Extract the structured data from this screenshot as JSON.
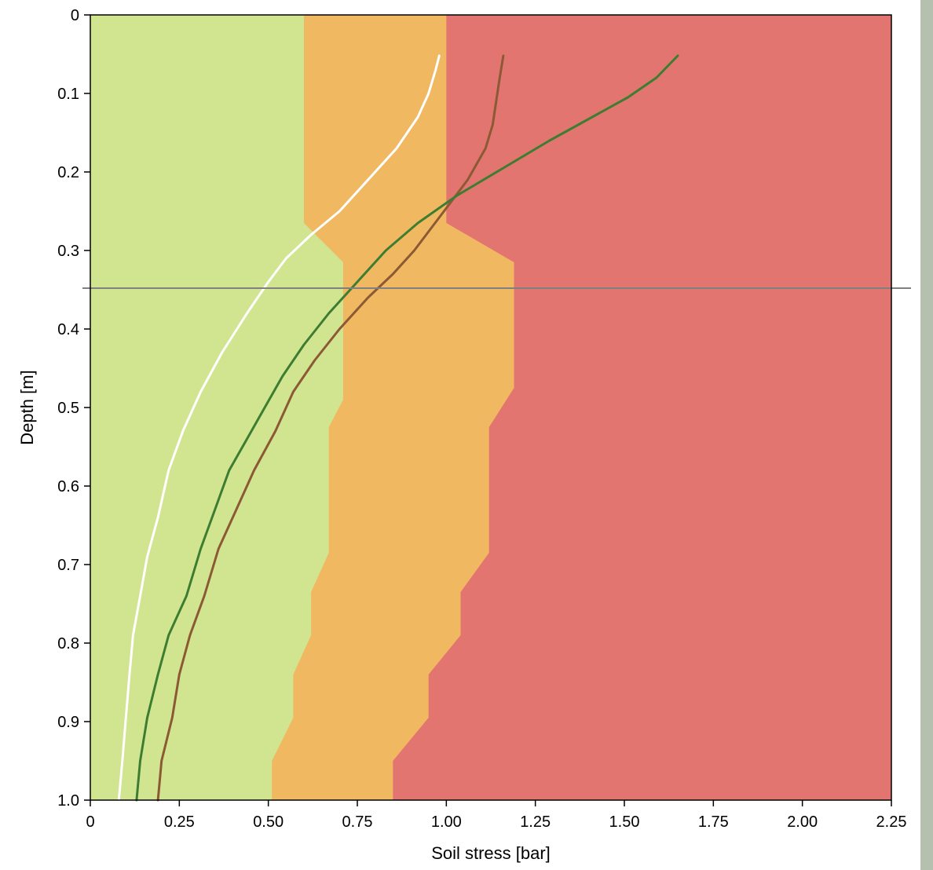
{
  "chart_data": {
    "type": "line",
    "title": "",
    "xlabel": "Soil stress [bar]",
    "ylabel": "Depth [m]",
    "xlim": [
      0,
      2.25
    ],
    "ylim": [
      0,
      1.0
    ],
    "y_inverted": true,
    "x_ticks": [
      0,
      0.25,
      0.5,
      0.75,
      1.0,
      1.25,
      1.5,
      1.75,
      2.0,
      2.25
    ],
    "x_tick_labels": [
      "0",
      "0.25",
      "0.50",
      "0.75",
      "1.00",
      "1.25",
      "1.50",
      "1.75",
      "2.00",
      "2.25"
    ],
    "y_ticks": [
      0,
      0.1,
      0.2,
      0.3,
      0.4,
      0.5,
      0.6,
      0.7,
      0.8,
      0.9,
      1.0
    ],
    "y_tick_labels": [
      "0",
      "0.1",
      "0.2",
      "0.3",
      "0.4",
      "0.5",
      "0.6",
      "0.7",
      "0.8",
      "0.9",
      "1.0"
    ],
    "grid": false,
    "zones": [
      {
        "color": "#d1e590",
        "boundary": [
          [
            0.6,
            0
          ],
          [
            0.6,
            0.265
          ],
          [
            0.71,
            0.315
          ],
          [
            0.71,
            0.49
          ],
          [
            0.67,
            0.525
          ],
          [
            0.67,
            0.685
          ],
          [
            0.62,
            0.735
          ],
          [
            0.62,
            0.79
          ],
          [
            0.57,
            0.84
          ],
          [
            0.57,
            0.895
          ],
          [
            0.51,
            0.95
          ],
          [
            0.51,
            1.0
          ]
        ]
      },
      {
        "color": "#f1b862",
        "boundary": [
          [
            1.0,
            0
          ],
          [
            1.0,
            0.265
          ],
          [
            1.19,
            0.315
          ],
          [
            1.19,
            0.475
          ],
          [
            1.12,
            0.525
          ],
          [
            1.12,
            0.685
          ],
          [
            1.04,
            0.735
          ],
          [
            1.04,
            0.79
          ],
          [
            0.95,
            0.84
          ],
          [
            0.95,
            0.895
          ],
          [
            0.85,
            0.95
          ],
          [
            0.85,
            1.0
          ]
        ]
      },
      {
        "color": "#e27570"
      }
    ],
    "reference_line": {
      "y": 0.348,
      "color": "#808080"
    },
    "series": [
      {
        "color": "#ffffff",
        "points": [
          [
            0.98,
            0.052
          ],
          [
            0.97,
            0.07
          ],
          [
            0.95,
            0.1
          ],
          [
            0.92,
            0.13
          ],
          [
            0.86,
            0.17
          ],
          [
            0.78,
            0.21
          ],
          [
            0.7,
            0.25
          ],
          [
            0.62,
            0.28
          ],
          [
            0.55,
            0.31
          ],
          [
            0.5,
            0.34
          ],
          [
            0.44,
            0.38
          ],
          [
            0.37,
            0.43
          ],
          [
            0.31,
            0.48
          ],
          [
            0.26,
            0.53
          ],
          [
            0.22,
            0.58
          ],
          [
            0.19,
            0.64
          ],
          [
            0.16,
            0.69
          ],
          [
            0.14,
            0.74
          ],
          [
            0.12,
            0.79
          ],
          [
            0.11,
            0.84
          ],
          [
            0.1,
            0.895
          ],
          [
            0.09,
            0.95
          ],
          [
            0.08,
            1.0
          ]
        ]
      },
      {
        "color": "#8b5a35",
        "points": [
          [
            1.16,
            0.052
          ],
          [
            1.15,
            0.08
          ],
          [
            1.14,
            0.11
          ],
          [
            1.13,
            0.14
          ],
          [
            1.11,
            0.17
          ],
          [
            1.06,
            0.21
          ],
          [
            1.01,
            0.24
          ],
          [
            0.96,
            0.27
          ],
          [
            0.91,
            0.3
          ],
          [
            0.85,
            0.33
          ],
          [
            0.78,
            0.36
          ],
          [
            0.7,
            0.4
          ],
          [
            0.63,
            0.44
          ],
          [
            0.57,
            0.48
          ],
          [
            0.52,
            0.53
          ],
          [
            0.46,
            0.58
          ],
          [
            0.41,
            0.63
          ],
          [
            0.36,
            0.68
          ],
          [
            0.32,
            0.74
          ],
          [
            0.28,
            0.79
          ],
          [
            0.25,
            0.84
          ],
          [
            0.23,
            0.895
          ],
          [
            0.2,
            0.95
          ],
          [
            0.19,
            1.0
          ]
        ]
      },
      {
        "color": "#3d7d32",
        "points": [
          [
            1.65,
            0.052
          ],
          [
            1.59,
            0.08
          ],
          [
            1.51,
            0.105
          ],
          [
            1.41,
            0.13
          ],
          [
            1.29,
            0.16
          ],
          [
            1.16,
            0.195
          ],
          [
            1.03,
            0.23
          ],
          [
            0.92,
            0.265
          ],
          [
            0.83,
            0.3
          ],
          [
            0.75,
            0.34
          ],
          [
            0.67,
            0.38
          ],
          [
            0.6,
            0.42
          ],
          [
            0.54,
            0.46
          ],
          [
            0.49,
            0.5
          ],
          [
            0.44,
            0.54
          ],
          [
            0.39,
            0.58
          ],
          [
            0.35,
            0.63
          ],
          [
            0.31,
            0.68
          ],
          [
            0.27,
            0.74
          ],
          [
            0.22,
            0.79
          ],
          [
            0.19,
            0.84
          ],
          [
            0.16,
            0.895
          ],
          [
            0.14,
            0.95
          ],
          [
            0.13,
            1.0
          ]
        ]
      }
    ]
  },
  "side_bar": {
    "color": "#b5c0ae"
  }
}
